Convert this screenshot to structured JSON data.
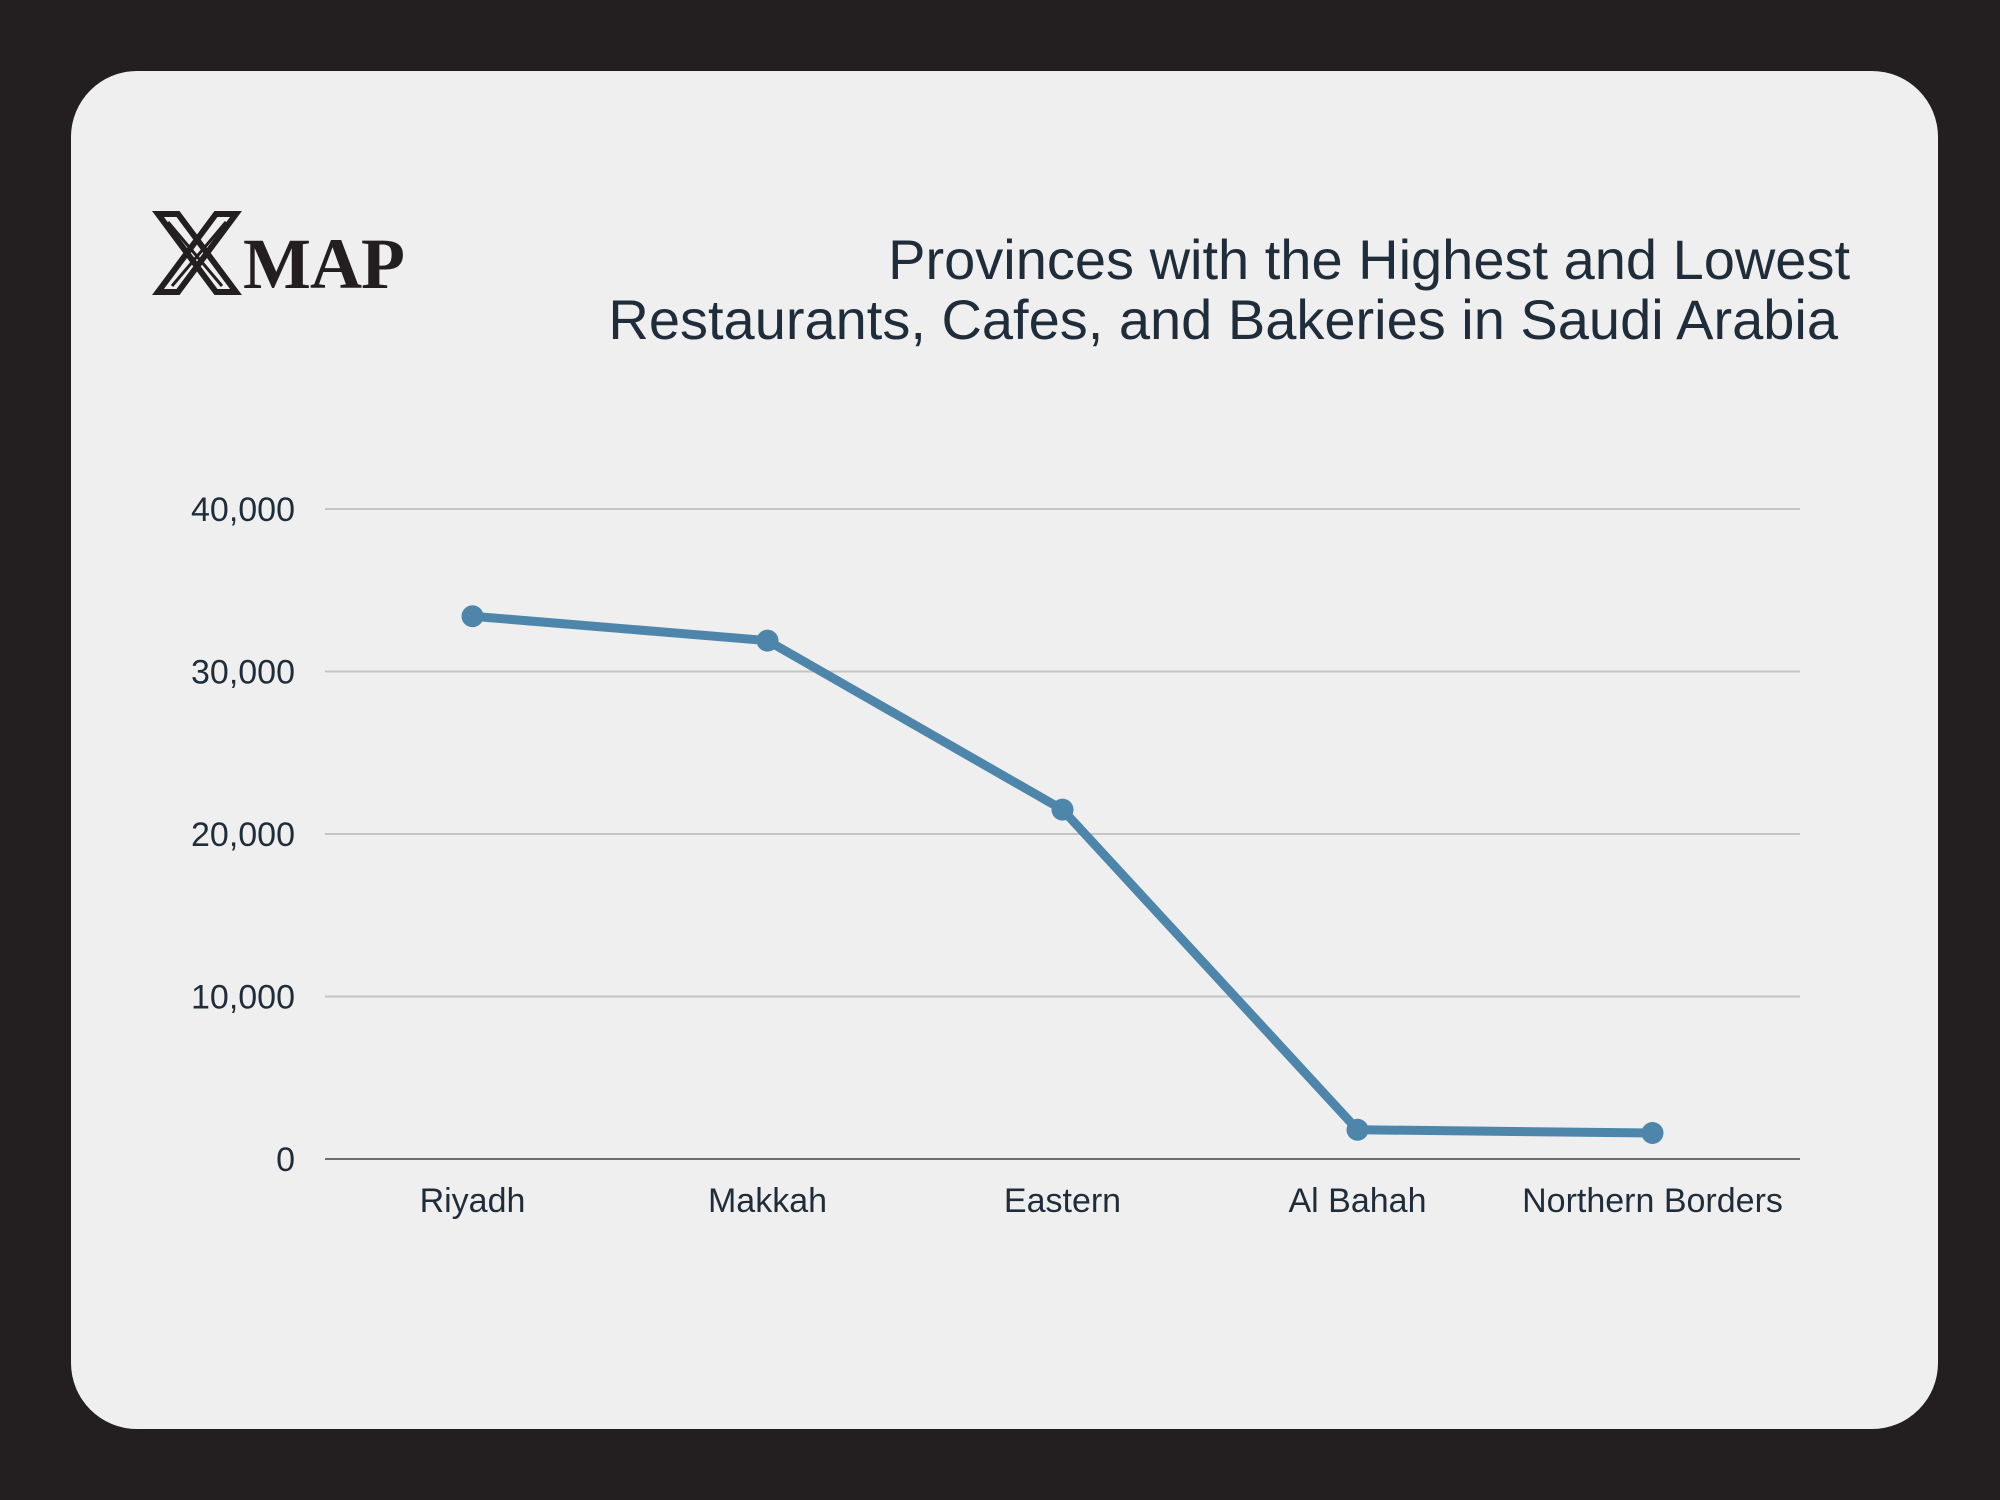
{
  "logo": {
    "text": "MAP"
  },
  "chart_data": {
    "type": "line",
    "title": "Provinces with the Highest and Lowest Restaurants, Cafes, and Bakeries in Saudi Arabia",
    "title_lines": [
      "Provinces with the Highest and Lowest",
      "Restaurants, Cafes, and Bakeries in Saudi Arabia"
    ],
    "xlabel": "",
    "ylabel": "",
    "categories": [
      "Riyadh",
      "Makkah",
      "Eastern",
      "Al Bahah",
      "Northern Borders"
    ],
    "series": [
      {
        "values": [
          33400,
          31900,
          21500,
          1800,
          1600
        ],
        "color": "#4d86aa"
      }
    ],
    "ylim": [
      0,
      40000
    ],
    "yticks": [
      0,
      10000,
      20000,
      30000,
      40000
    ],
    "ytick_labels": [
      "0",
      "10,000",
      "20,000",
      "30,000",
      "40,000"
    ],
    "grid": true,
    "legend": "none"
  },
  "colors": {
    "background": "#231f20",
    "card": "#efefef",
    "text": "#1f2d3b",
    "grid": "#c4c4c4",
    "axis": "#6d6d6d"
  }
}
